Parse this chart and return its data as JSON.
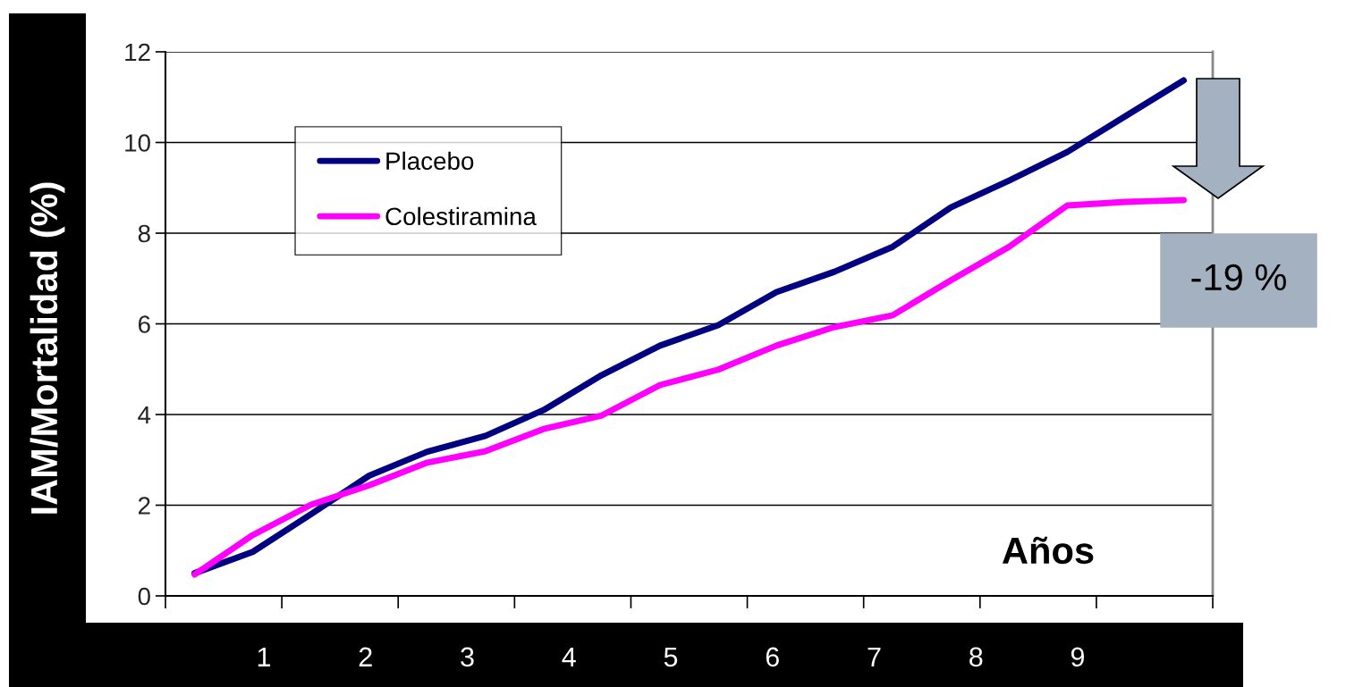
{
  "chart_data": {
    "type": "line",
    "ylabel": "IAM/Mortalidad (%)",
    "categories": [
      null,
      null,
      null,
      null,
      null,
      null,
      null,
      null,
      null,
      null,
      null,
      null,
      null,
      null,
      null,
      null,
      null,
      null
    ],
    "series": [
      {
        "name": "Placebo",
        "color": "#000080",
        "values": [
          0.5,
          0.97,
          1.8,
          2.65,
          3.18,
          3.53,
          4.1,
          4.87,
          5.52,
          5.97,
          6.7,
          7.15,
          7.7,
          8.57,
          9.16,
          9.79,
          10.58,
          11.37
        ]
      },
      {
        "name": "Colestiramina",
        "color": "#ff00ff",
        "values": [
          0.47,
          1.34,
          2.01,
          2.44,
          2.94,
          3.19,
          3.68,
          3.98,
          4.65,
          4.99,
          5.52,
          5.93,
          6.19,
          6.96,
          7.7,
          8.61,
          8.69,
          8.73
        ]
      }
    ],
    "ylim": [
      0,
      12
    ],
    "yticks": [
      0,
      2,
      4,
      6,
      8,
      10,
      12
    ],
    "grid": "y",
    "legend": "top left",
    "marker": "none",
    "line_style": "solid",
    "annotations": [
      "Años",
      "-19 %",
      "1",
      "2",
      "3",
      "4",
      "5",
      "6",
      "7",
      "8",
      "9"
    ]
  }
}
